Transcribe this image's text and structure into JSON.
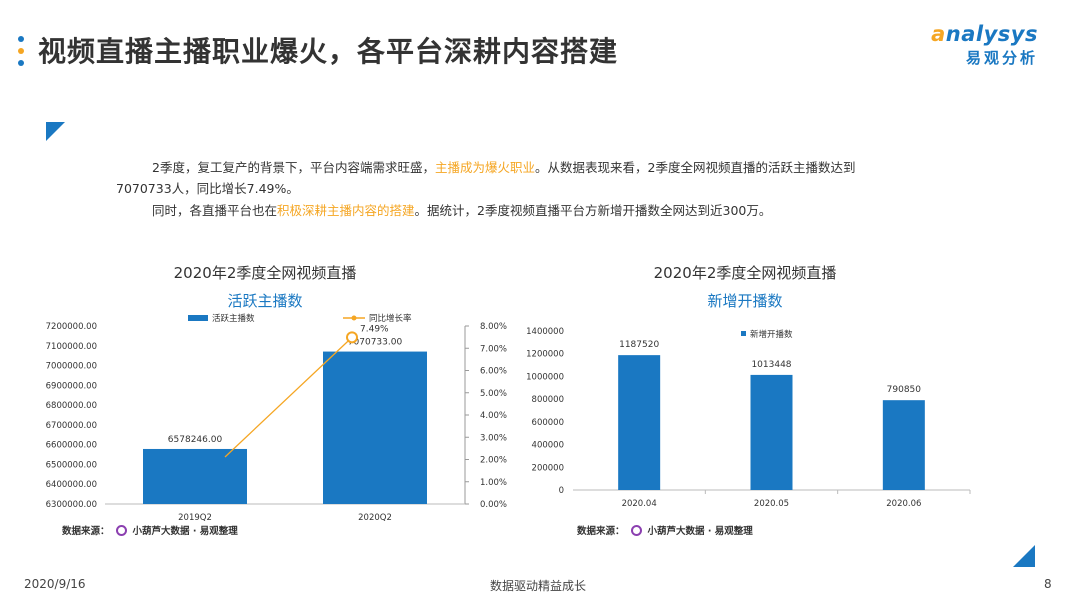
{
  "header": {
    "title": "视频直播主播职业爆火，各平台深耕内容搭建",
    "logo_en": "nalysys",
    "logo_en_initial": "a",
    "logo_cn": "易观分析"
  },
  "body": {
    "p1_a": "2季度，复工复产的背景下，平台内容端需求旺盛，",
    "p1_hl": "主播成为爆火职业",
    "p1_b": "。从数据表现来看，2季度全网视频直播的活跃主播数达到",
    "p2": "7070733人，同比增长7.49%。",
    "p3_a": "同时，各直播平台也在",
    "p3_hl": "积极深耕主播内容的搭建",
    "p3_b": "。据统计，2季度视频直播平台方新增开播数全网达到近300万。"
  },
  "chart_data": [
    {
      "type": "bar",
      "title": "2020年2季度全网视频直播",
      "subtitle": "活跃主播数",
      "categories": [
        "2019Q2",
        "2020Q2"
      ],
      "series": [
        {
          "name": "活跃主播数",
          "values": [
            6578246.0,
            7070733.0
          ],
          "labels": [
            "6578246.00",
            "7070733.00"
          ],
          "color": "#1a78c2",
          "axis": "left"
        },
        {
          "name": "同比增长率",
          "type": "line",
          "values": [
            null,
            7.49
          ],
          "labels": [
            "",
            "7.49%"
          ],
          "color": "#f5a623",
          "axis": "right"
        }
      ],
      "ylim": [
        6300000,
        7200000
      ],
      "y_ticks": [
        "7200000.00",
        "7100000.00",
        "7000000.00",
        "6900000.00",
        "6800000.00",
        "6700000.00",
        "6600000.00",
        "6500000.00",
        "6400000.00",
        "6300000.00"
      ],
      "y2lim": [
        0,
        8
      ],
      "y2_ticks": [
        "8.00%",
        "7.00%",
        "6.00%",
        "5.00%",
        "4.00%",
        "3.00%",
        "2.00%",
        "1.00%",
        "0.00%"
      ],
      "source_label": "数据来源：",
      "source_text": "小葫芦大数据 · 易观整理"
    },
    {
      "type": "bar",
      "title": "2020年2季度全网视频直播",
      "subtitle": "新增开播数",
      "categories": [
        "2020.04",
        "2020.05",
        "2020.06"
      ],
      "series": [
        {
          "name": "新增开播数",
          "values": [
            1187520,
            1013448,
            790850
          ],
          "labels": [
            "1187520",
            "1013448",
            "790850"
          ],
          "color": "#1a78c2"
        }
      ],
      "ylim": [
        0,
        1400000
      ],
      "y_ticks": [
        "1400000",
        "1200000",
        "1000000",
        "800000",
        "600000",
        "400000",
        "200000",
        "0"
      ],
      "source_label": "数据来源：",
      "source_text": "小葫芦大数据 · 易观整理"
    }
  ],
  "footer": {
    "date": "2020/9/16",
    "slogan": "数据驱动精益成长",
    "page": "8"
  },
  "colors": {
    "accent": "#1a78c2",
    "highlight": "#f5a623",
    "dot_top": "#1a78c2",
    "dot_mid": "#f5a623",
    "dot_bot": "#1a78c2"
  }
}
